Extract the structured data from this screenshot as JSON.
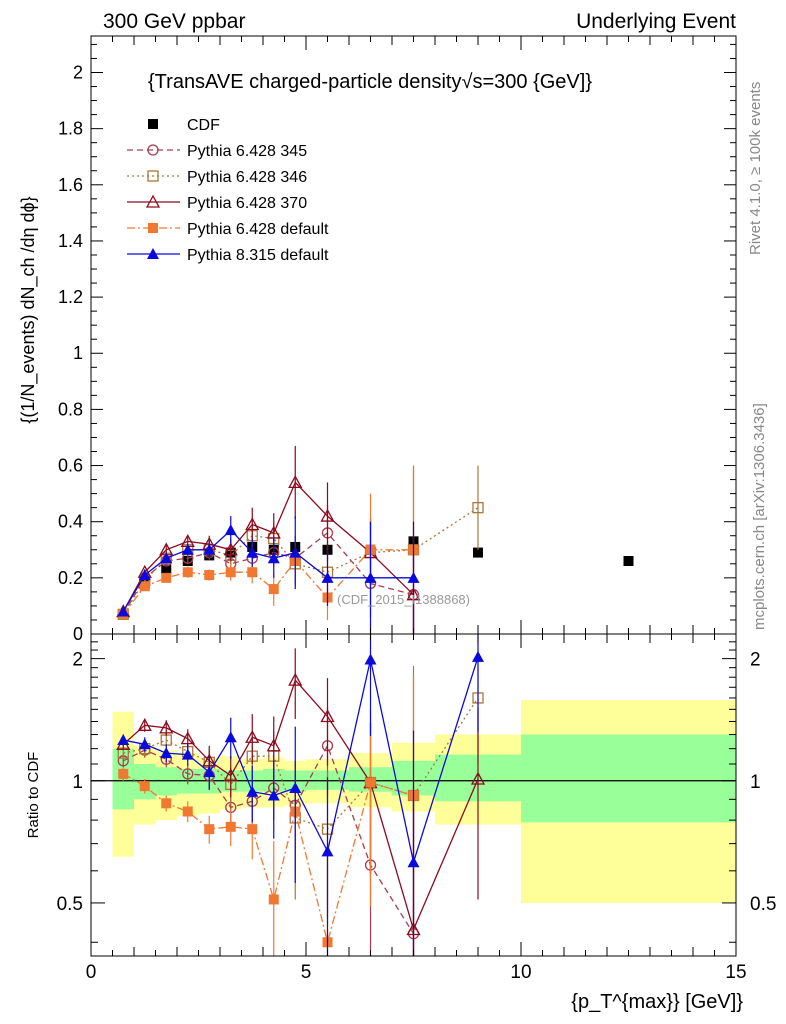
{
  "header": {
    "left": "300 GeV ppbar",
    "right": "Underlying Event"
  },
  "side_labels": {
    "rivet": "Rivet 4.1.0, ≥ 100k events",
    "mcplots": "mcplots.cern.ch [arXiv:1306.3436]"
  },
  "watermark": "(CDF_2015_I1388868)",
  "colors": {
    "cdf": "#000000",
    "p345": "#a83c50",
    "p346": "#a8783c",
    "p370": "#8c0a1e",
    "pdefault": "#f07830",
    "p8": "#0a0adc",
    "band_yellow": "#ffff99",
    "band_green": "#99ff99"
  },
  "chart_data": [
    {
      "type": "scatter",
      "title": "{TransAVE charged-particle density√s=300 {GeV]}",
      "ylabel": "{(1/N_events) dN_ch /dη dϕ}",
      "xlabel": "{p_T^{max}} [GeV]}",
      "xlim": [
        0,
        15
      ],
      "ylim": [
        0,
        2.13
      ],
      "yticks": [
        0,
        0.2,
        0.4,
        0.6,
        0.8,
        1,
        1.2,
        1.4,
        1.6,
        1.8,
        2
      ],
      "ytick_labels": [
        "0",
        "0.2",
        "0.4",
        "0.6",
        "0.8",
        "1",
        "1.2",
        "1.4",
        "1.6",
        "1.8",
        "2"
      ],
      "legend": [
        "CDF",
        "Pythia 6.428 345",
        "Pythia 6.428 346",
        "Pythia 6.428 370",
        "Pythia 6.428 default",
        "Pythia 8.315 default"
      ],
      "x": [
        0.75,
        1.25,
        1.75,
        2.25,
        2.75,
        3.25,
        3.75,
        4.25,
        4.75,
        5.5,
        6.5,
        7.5,
        9.0,
        12.5
      ],
      "series": [
        {
          "name": "CDF",
          "values": [
            0.07,
            0.18,
            0.23,
            0.26,
            0.28,
            0.29,
            0.31,
            0.3,
            0.31,
            0.3,
            0.3,
            0.33,
            0.29,
            0.26
          ]
        },
        {
          "name": "Pythia 6.428 345",
          "values": [
            0.07,
            0.2,
            0.26,
            0.27,
            0.29,
            0.25,
            0.27,
            0.29,
            0.27,
            0.36,
            0.18,
            0.14,
            null,
            null
          ],
          "errors": [
            0.005,
            0.01,
            0.015,
            0.02,
            0.025,
            0.04,
            0.05,
            0.05,
            0.08,
            0.1,
            0.12,
            0.15,
            null,
            null
          ]
        },
        {
          "name": "Pythia 6.428 346",
          "values": [
            0.07,
            0.19,
            0.27,
            0.3,
            0.3,
            0.28,
            0.35,
            0.34,
            0.25,
            0.22,
            0.29,
            0.3,
            0.45,
            null
          ],
          "errors": [
            0.005,
            0.01,
            0.015,
            0.02,
            0.025,
            0.04,
            0.05,
            0.06,
            0.08,
            0.1,
            0.12,
            0.3,
            0.15,
            null
          ]
        },
        {
          "name": "Pythia 6.428 370",
          "values": [
            0.08,
            0.22,
            0.3,
            0.33,
            0.32,
            0.3,
            0.39,
            0.36,
            0.54,
            0.42,
            0.29,
            0.14,
            null,
            null
          ],
          "errors": [
            0.005,
            0.01,
            0.015,
            0.02,
            0.03,
            0.04,
            0.06,
            0.07,
            0.13,
            0.12,
            0.12,
            0.15,
            null,
            null
          ]
        },
        {
          "name": "Pythia 6.428 default",
          "values": [
            0.07,
            0.17,
            0.2,
            0.22,
            0.21,
            0.22,
            0.22,
            0.16,
            0.26,
            0.13,
            0.3,
            0.3,
            null,
            null
          ],
          "errors": [
            0.005,
            0.01,
            0.015,
            0.02,
            0.02,
            0.03,
            0.04,
            0.06,
            0.08,
            0.08,
            0.2,
            0.3,
            null,
            null
          ]
        },
        {
          "name": "Pythia 8.315 default",
          "values": [
            0.08,
            0.21,
            0.27,
            0.3,
            0.3,
            0.37,
            0.29,
            0.27,
            0.29,
            0.2,
            0.2,
            0.2,
            null,
            null
          ],
          "errors": [
            0.005,
            0.01,
            0.015,
            0.02,
            0.03,
            0.05,
            0.05,
            0.07,
            0.13,
            0.1,
            0.2,
            0.2,
            null,
            null
          ]
        }
      ]
    },
    {
      "type": "scatter",
      "ylabel": "Ratio to CDF",
      "xlabel": "{p_T^{max}} [GeV]}",
      "xlim": [
        0,
        15
      ],
      "ylim": [
        0.37,
        2.3
      ],
      "yticks": [
        0.5,
        1,
        2
      ],
      "ytick_labels": [
        "0.5",
        "1",
        "2"
      ],
      "xticks": [
        0,
        5,
        10,
        15
      ],
      "xtick_labels": [
        "0",
        "5",
        "10",
        "15"
      ],
      "reference_line": 1,
      "bands": {
        "edges": [
          0.5,
          1.0,
          1.5,
          2.0,
          2.5,
          3.0,
          3.5,
          4.0,
          4.5,
          5.0,
          6.0,
          7.0,
          8.0,
          10.0,
          15.0
        ],
        "yellow_low": [
          0.65,
          0.78,
          0.8,
          0.82,
          0.83,
          0.85,
          0.86,
          0.86,
          0.87,
          0.88,
          0.86,
          0.84,
          0.78,
          0.5
        ],
        "yellow_high": [
          1.48,
          1.22,
          1.19,
          1.17,
          1.14,
          1.15,
          1.13,
          1.14,
          1.12,
          1.13,
          1.17,
          1.24,
          1.3,
          1.58
        ],
        "green_low": [
          0.85,
          0.9,
          0.92,
          0.93,
          0.93,
          0.94,
          0.94,
          0.94,
          0.94,
          0.95,
          0.94,
          0.92,
          0.89,
          0.79
        ],
        "green_high": [
          1.2,
          1.1,
          1.08,
          1.07,
          1.07,
          1.06,
          1.06,
          1.07,
          1.06,
          1.06,
          1.08,
          1.12,
          1.16,
          1.3
        ]
      },
      "x": [
        0.75,
        1.25,
        1.75,
        2.25,
        2.75,
        3.25,
        3.75,
        4.25,
        4.75,
        5.5,
        6.5,
        7.5,
        9.0
      ],
      "series": [
        {
          "name": "Pythia 6.428 345",
          "values": [
            1.12,
            1.19,
            1.13,
            1.04,
            1.03,
            0.86,
            0.89,
            0.96,
            0.87,
            1.22,
            0.62,
            0.42,
            null
          ],
          "errors": [
            0.04,
            0.05,
            0.05,
            0.06,
            0.08,
            0.1,
            0.13,
            0.16,
            0.25,
            0.3,
            0.4,
            0.5,
            null
          ]
        },
        {
          "name": "Pythia 6.428 346",
          "values": [
            1.17,
            1.2,
            1.26,
            1.18,
            1.11,
            0.98,
            1.15,
            1.15,
            0.81,
            0.76,
            0.99,
            0.92,
            1.6
          ],
          "errors": [
            0.04,
            0.05,
            0.05,
            0.06,
            0.08,
            0.1,
            0.14,
            0.18,
            0.3,
            0.3,
            0.4,
            1.0,
            0.5
          ]
        },
        {
          "name": "Pythia 6.428 370",
          "values": [
            1.23,
            1.37,
            1.35,
            1.27,
            1.12,
            1.03,
            1.28,
            1.22,
            1.77,
            1.44,
            0.99,
            0.43,
            1.01
          ],
          "errors": [
            0.04,
            0.05,
            0.06,
            0.07,
            0.1,
            0.12,
            0.18,
            0.22,
            0.35,
            0.35,
            0.4,
            0.5,
            0.5
          ]
        },
        {
          "name": "Pythia 6.428 default",
          "values": [
            1.04,
            0.97,
            0.88,
            0.84,
            0.76,
            0.77,
            0.76,
            0.51,
            0.84,
            0.4,
            0.99,
            0.92,
            null
          ],
          "errors": [
            0.04,
            0.04,
            0.04,
            0.05,
            0.06,
            0.08,
            0.12,
            0.2,
            0.25,
            0.25,
            0.5,
            0.9,
            null
          ]
        },
        {
          "name": "Pythia 8.315 default",
          "values": [
            1.26,
            1.23,
            1.17,
            1.16,
            1.05,
            1.28,
            0.94,
            0.92,
            0.96,
            0.67,
            1.99,
            0.63,
            2.02
          ],
          "errors": [
            0.04,
            0.05,
            0.06,
            0.07,
            0.1,
            0.15,
            0.15,
            0.2,
            0.4,
            0.35,
            0.7,
            0.7,
            0.7
          ]
        }
      ]
    }
  ]
}
